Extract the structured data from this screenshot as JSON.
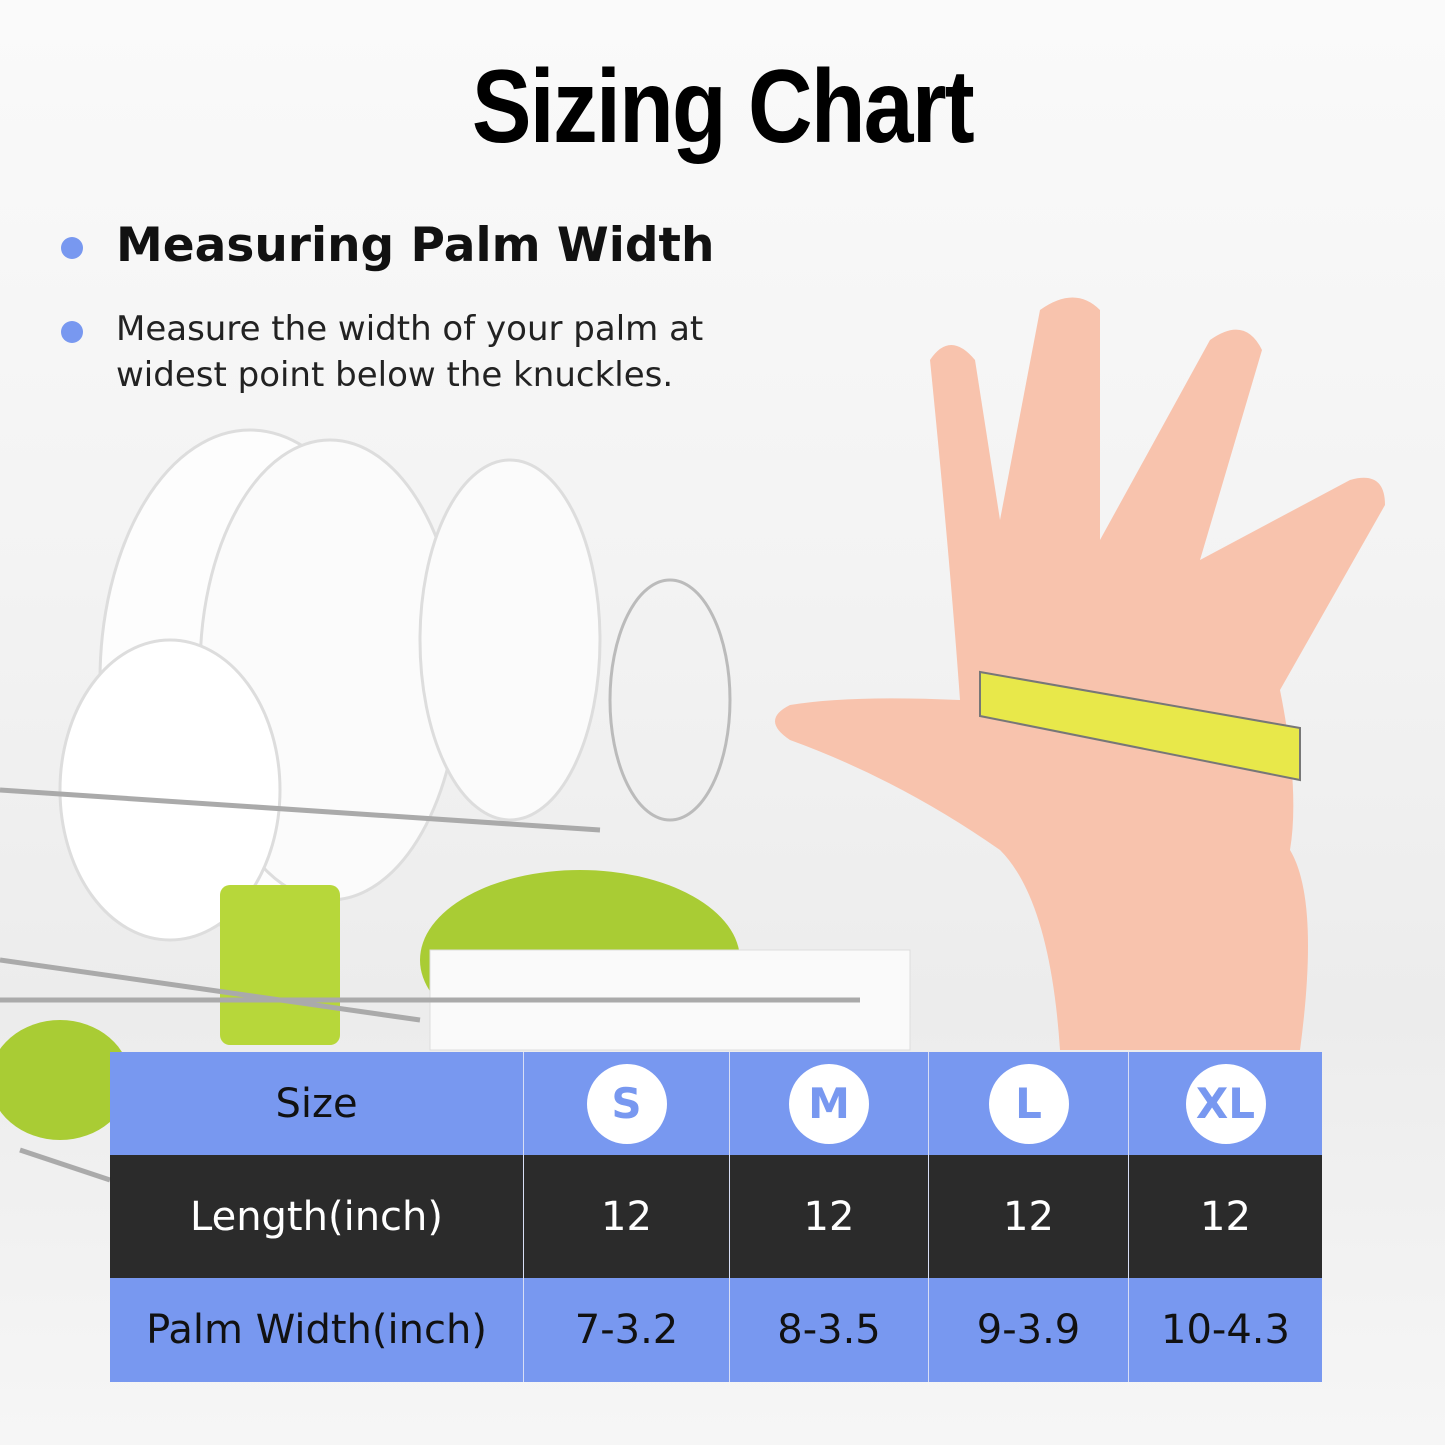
{
  "title": "Sizing Chart",
  "heading": "Measuring Palm Width",
  "description": "Measure the width of your palm at widest point below the knuckles.",
  "colors": {
    "accent": "#7898f0",
    "dark_row": "#1c1c1c",
    "skin": "#f8c3ad",
    "tape": "#e8e84a"
  },
  "table": {
    "row_labels": [
      "Size",
      "Length(inch)",
      "Palm Width(inch)"
    ],
    "sizes": [
      "S",
      "M",
      "L",
      "XL"
    ],
    "length": [
      "12",
      "12",
      "12",
      "12"
    ],
    "palm_width": [
      "7-3.2",
      "8-3.5",
      "9-3.9",
      "10-4.3"
    ]
  }
}
